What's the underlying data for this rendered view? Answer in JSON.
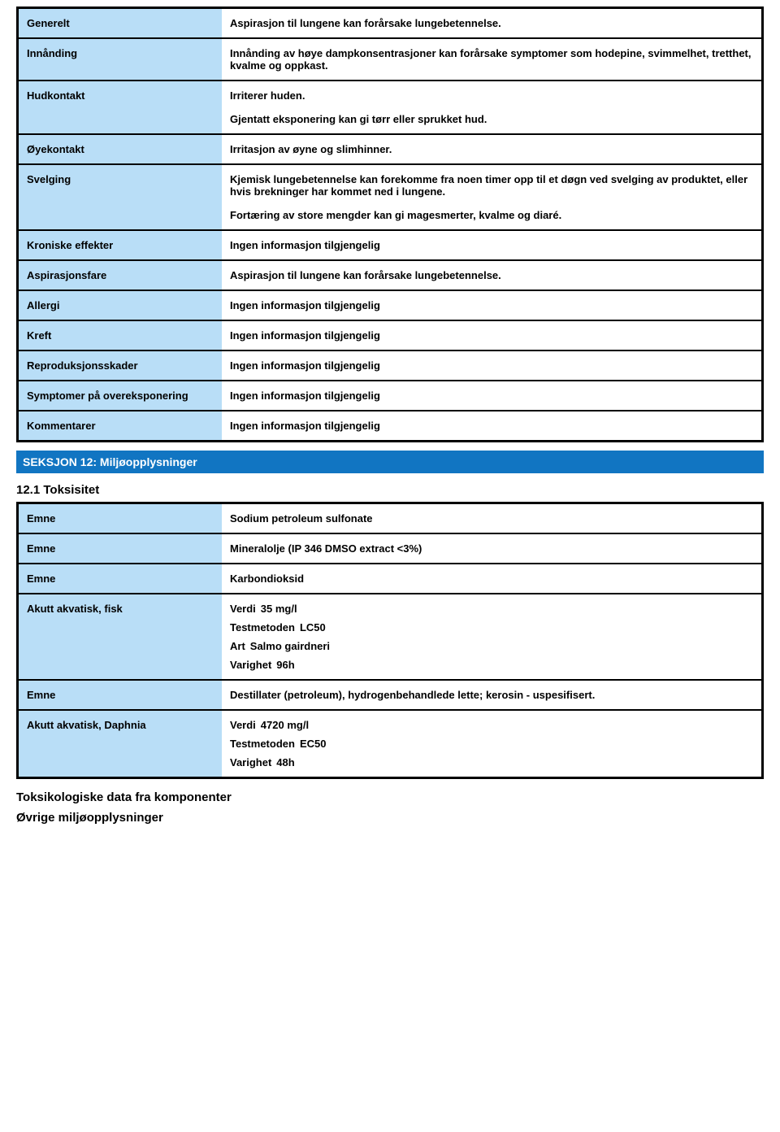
{
  "colors": {
    "label_bg": "#b9def7",
    "section_bg": "#1175c2",
    "section_fg": "#ffffff",
    "border": "#000000",
    "text": "#000000",
    "page_bg": "#ffffff"
  },
  "table1": {
    "rows": [
      {
        "label": "Generelt",
        "paragraphs": [
          "Aspirasjon til lungene kan forårsake lungebetennelse."
        ]
      },
      {
        "label": "Innånding",
        "paragraphs": [
          "Innånding av høye dampkonsentrasjoner kan forårsake symptomer som hodepine, svimmelhet, tretthet, kvalme og oppkast."
        ]
      },
      {
        "label": "Hudkontakt",
        "paragraphs": [
          "Irriterer huden.",
          "Gjentatt eksponering kan gi tørr eller sprukket hud."
        ]
      },
      {
        "label": "Øyekontakt",
        "paragraphs": [
          "Irritasjon av øyne og slimhinner."
        ]
      },
      {
        "label": "Svelging",
        "paragraphs": [
          "Kjemisk lungebetennelse kan forekomme fra noen timer opp til et døgn ved svelging av produktet, eller hvis brekninger har kommet ned i lungene.",
          "Fortæring av store mengder kan gi magesmerter, kvalme og diaré."
        ]
      },
      {
        "label": "Kroniske effekter",
        "paragraphs": [
          "Ingen informasjon tilgjengelig"
        ]
      },
      {
        "label": "Aspirasjonsfare",
        "paragraphs": [
          "Aspirasjon til lungene kan forårsake lungebetennelse."
        ]
      },
      {
        "label": "Allergi",
        "paragraphs": [
          "Ingen informasjon tilgjengelig"
        ]
      },
      {
        "label": "Kreft",
        "paragraphs": [
          "Ingen informasjon tilgjengelig"
        ]
      },
      {
        "label": "Reproduksjonsskader",
        "paragraphs": [
          "Ingen informasjon tilgjengelig"
        ]
      },
      {
        "label": "Symptomer på overeksponering",
        "paragraphs": [
          "Ingen informasjon tilgjengelig"
        ]
      },
      {
        "label": "Kommentarer",
        "paragraphs": [
          "Ingen informasjon tilgjengelig"
        ]
      }
    ]
  },
  "section12": {
    "header": "SEKSJON 12: Miljøopplysninger",
    "sub1": "12.1 Toksisitet"
  },
  "table2": {
    "rows": [
      {
        "label": "Emne",
        "paragraphs": [
          "Sodium petroleum sulfonate"
        ]
      },
      {
        "label": "Emne",
        "paragraphs": [
          "Mineralolje (IP 346 DMSO extract <3%)"
        ]
      },
      {
        "label": "Emne",
        "paragraphs": [
          "Karbondioksid"
        ]
      },
      {
        "label": "Akutt akvatisk, fisk",
        "kvs": [
          {
            "k": "Verdi",
            "v": "35 mg/l"
          },
          {
            "k": "Testmetoden",
            "v": "LC50"
          },
          {
            "k": "Art",
            "v": "Salmo gairdneri"
          },
          {
            "k": "Varighet",
            "v": "96h"
          }
        ]
      },
      {
        "label": "Emne",
        "paragraphs": [
          "Destillater (petroleum), hydrogenbehandlede lette; kerosin - uspesifisert."
        ]
      },
      {
        "label": "Akutt akvatisk, Daphnia",
        "kvs": [
          {
            "k": "Verdi",
            "v": "4720 mg/l"
          },
          {
            "k": "Testmetoden",
            "v": "EC50"
          },
          {
            "k": "Varighet",
            "v": "48h"
          }
        ]
      }
    ]
  },
  "footer": {
    "line1": "Toksikologiske data fra komponenter",
    "line2": "Øvrige miljøopplysninger"
  }
}
